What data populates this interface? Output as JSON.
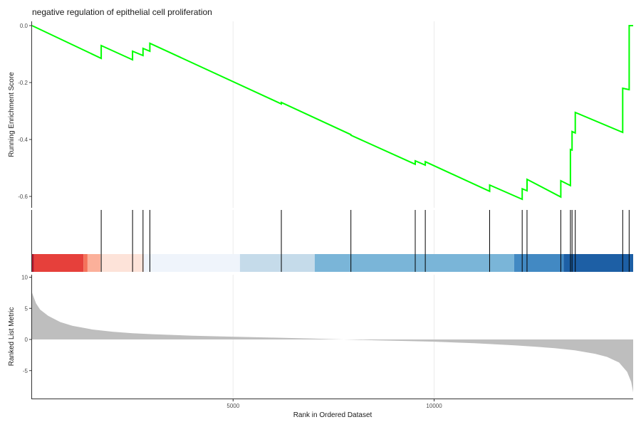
{
  "chart_data": {
    "type": "line",
    "title": "negative regulation of epithelial cell proliferation",
    "xlabel": "Rank in Ordered Dataset",
    "xlim": [
      0,
      14950
    ],
    "x_ticks": [
      5000,
      10000
    ],
    "x_tick_labels": [
      "5000",
      "10000"
    ],
    "grid": "vertical",
    "colors": {
      "running_line": "#00ff00",
      "hit_line": "#000000",
      "ranked_fill": "#bebebe",
      "grid": "#ebebeb"
    },
    "running_score": {
      "ylabel": "Running Enrichment Score",
      "ylim": [
        -0.64,
        0.015
      ],
      "y_ticks": [
        0.0,
        -0.2,
        -0.4,
        -0.6
      ],
      "y_tick_labels": [
        "0.0",
        "-0.2",
        "-0.4",
        "-0.6"
      ],
      "gene_hits": [
        1720,
        2500,
        2760,
        2930,
        6200,
        7930,
        9530,
        9780,
        11380,
        12190,
        12310,
        13150,
        13390,
        13430,
        13510,
        14690,
        14850
      ],
      "points": [
        [
          0,
          0.0
        ],
        [
          1720,
          -0.115
        ],
        [
          1720,
          -0.07
        ],
        [
          2500,
          -0.12
        ],
        [
          2500,
          -0.09
        ],
        [
          2760,
          -0.105
        ],
        [
          2760,
          -0.08
        ],
        [
          2930,
          -0.09
        ],
        [
          2930,
          -0.062
        ],
        [
          6200,
          -0.275
        ],
        [
          6200,
          -0.27
        ],
        [
          7930,
          -0.383
        ],
        [
          7930,
          -0.385
        ],
        [
          9530,
          -0.487
        ],
        [
          9530,
          -0.475
        ],
        [
          9780,
          -0.49
        ],
        [
          9780,
          -0.478
        ],
        [
          11380,
          -0.582
        ],
        [
          11380,
          -0.56
        ],
        [
          12190,
          -0.61
        ],
        [
          12190,
          -0.573
        ],
        [
          12310,
          -0.58
        ],
        [
          12310,
          -0.54
        ],
        [
          13150,
          -0.602
        ],
        [
          13150,
          -0.545
        ],
        [
          13390,
          -0.562
        ],
        [
          13390,
          -0.435
        ],
        [
          13430,
          -0.437
        ],
        [
          13430,
          -0.372
        ],
        [
          13510,
          -0.377
        ],
        [
          13510,
          -0.305
        ],
        [
          14690,
          -0.375
        ],
        [
          14690,
          -0.22
        ],
        [
          14850,
          -0.225
        ],
        [
          14850,
          0.0
        ],
        [
          14950,
          0.0
        ]
      ]
    },
    "color_bar": [
      {
        "from": 0,
        "to": 50,
        "color": "#b2182b"
      },
      {
        "from": 50,
        "to": 1280,
        "color": "#e6403b"
      },
      {
        "from": 1280,
        "to": 1380,
        "color": "#f4725a"
      },
      {
        "from": 1380,
        "to": 1700,
        "color": "#fbb09a"
      },
      {
        "from": 1700,
        "to": 2780,
        "color": "#fde3d9"
      },
      {
        "from": 2780,
        "to": 5170,
        "color": "#eff4fb"
      },
      {
        "from": 5170,
        "to": 7030,
        "color": "#c5dbea"
      },
      {
        "from": 7030,
        "to": 11990,
        "color": "#7ab5d8"
      },
      {
        "from": 11990,
        "to": 13220,
        "color": "#4289c3"
      },
      {
        "from": 13220,
        "to": 14950,
        "color": "#1d5fa5"
      }
    ],
    "ranked_list": {
      "ylabel": "Ranked List Metric",
      "ylim": [
        -9.6,
        10.4
      ],
      "y_ticks": [
        10,
        5,
        0,
        -5
      ],
      "y_tick_labels": [
        "10",
        "5",
        "0",
        "-5"
      ],
      "curve": [
        [
          0,
          7.5
        ],
        [
          100,
          5.8
        ],
        [
          200,
          4.8
        ],
        [
          400,
          3.8
        ],
        [
          700,
          2.8
        ],
        [
          1000,
          2.2
        ],
        [
          1500,
          1.6
        ],
        [
          2000,
          1.25
        ],
        [
          2500,
          1.0
        ],
        [
          3000,
          0.85
        ],
        [
          4000,
          0.6
        ],
        [
          5000,
          0.45
        ],
        [
          6000,
          0.3
        ],
        [
          7000,
          0.15
        ],
        [
          7500,
          0.05
        ],
        [
          8000,
          -0.05
        ],
        [
          8500,
          -0.12
        ],
        [
          9000,
          -0.2
        ],
        [
          10000,
          -0.35
        ],
        [
          11000,
          -0.6
        ],
        [
          12000,
          -0.95
        ],
        [
          12500,
          -1.15
        ],
        [
          13000,
          -1.4
        ],
        [
          13500,
          -1.75
        ],
        [
          14000,
          -2.3
        ],
        [
          14300,
          -2.8
        ],
        [
          14600,
          -3.7
        ],
        [
          14800,
          -5.2
        ],
        [
          14900,
          -6.8
        ],
        [
          14950,
          -8.5
        ]
      ]
    }
  }
}
